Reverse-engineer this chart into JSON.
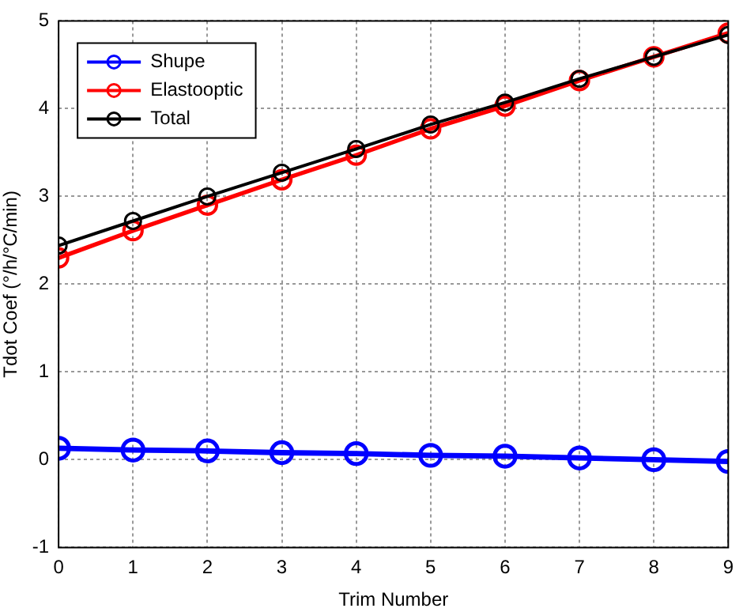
{
  "chart_data": {
    "type": "line",
    "xlabel": "Trim Number",
    "ylabel": "Tdot Coef (°/h/°C/min)",
    "x": [
      0,
      1,
      2,
      3,
      4,
      5,
      6,
      7,
      8,
      9
    ],
    "series": [
      {
        "name": "Shupe",
        "color": "#0000ff",
        "values": [
          0.13,
          0.11,
          0.1,
          0.08,
          0.07,
          0.05,
          0.04,
          0.02,
          0.0,
          -0.02
        ]
      },
      {
        "name": "Elastooptic",
        "color": "#ff0000",
        "values": [
          2.3,
          2.61,
          2.9,
          3.19,
          3.47,
          3.77,
          4.03,
          4.32,
          4.59,
          4.86
        ]
      },
      {
        "name": "Total",
        "color": "#000000",
        "values": [
          2.44,
          2.72,
          3.0,
          3.27,
          3.54,
          3.82,
          4.07,
          4.34,
          4.59,
          4.84
        ]
      }
    ],
    "xlim": [
      0,
      9
    ],
    "xticks": [
      0,
      1,
      2,
      3,
      4,
      5,
      6,
      7,
      8,
      9
    ],
    "ylim": [
      -1,
      5
    ],
    "yticks": [
      -1,
      0,
      1,
      2,
      3,
      4,
      5
    ],
    "grid": true,
    "legend": "top left",
    "marker": "circle",
    "line_style": "solid"
  }
}
